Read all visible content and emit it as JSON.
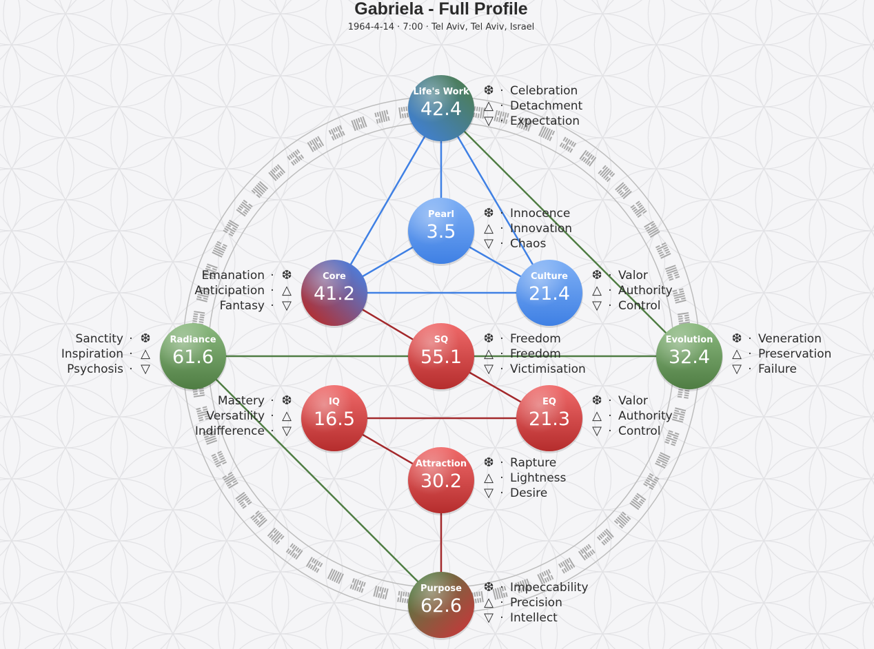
{
  "header": {
    "title": "Gabriela - Full Profile",
    "subtitle": "1964-4-14 · 7:00 · Tel Aviv, Tel Aviv, Israel"
  },
  "icons": {
    "gift": "snowflake-icon",
    "shadow_up": "triangle-up-icon",
    "shadow_down": "triangle-down-icon"
  },
  "colors": {
    "blue": "#3f80e4",
    "green": "#4f7d43",
    "red": "#a3282b"
  },
  "nodes": {
    "lifes_work": {
      "title": "Life's Work",
      "value": "42.4",
      "gifts": [
        "Celebration",
        "Detachment",
        "Expectation"
      ]
    },
    "pearl": {
      "title": "Pearl",
      "value": "3.5",
      "gifts": [
        "Innocence",
        "Innovation",
        "Chaos"
      ]
    },
    "core": {
      "title": "Core",
      "value": "41.2",
      "gifts": [
        "Emanation",
        "Anticipation",
        "Fantasy"
      ]
    },
    "culture": {
      "title": "Culture",
      "value": "21.4",
      "gifts": [
        "Valor",
        "Authority",
        "Control"
      ]
    },
    "radiance": {
      "title": "Radiance",
      "value": "61.6",
      "gifts": [
        "Sanctity",
        "Inspiration",
        "Psychosis"
      ]
    },
    "sq": {
      "title": "SQ",
      "value": "55.1",
      "gifts": [
        "Freedom",
        "Freedom",
        "Victimisation"
      ]
    },
    "evolution": {
      "title": "Evolution",
      "value": "32.4",
      "gifts": [
        "Veneration",
        "Preservation",
        "Failure"
      ]
    },
    "iq": {
      "title": "IQ",
      "value": "16.5",
      "gifts": [
        "Mastery",
        "Versatility",
        "Indifference"
      ]
    },
    "eq": {
      "title": "EQ",
      "value": "21.3",
      "gifts": [
        "Valor",
        "Authority",
        "Control"
      ]
    },
    "attraction": {
      "title": "Attraction",
      "value": "30.2",
      "gifts": [
        "Rapture",
        "Lightness",
        "Desire"
      ]
    },
    "purpose": {
      "title": "Purpose",
      "value": "62.6",
      "gifts": [
        "Impeccability",
        "Precision",
        "Intellect"
      ]
    }
  }
}
